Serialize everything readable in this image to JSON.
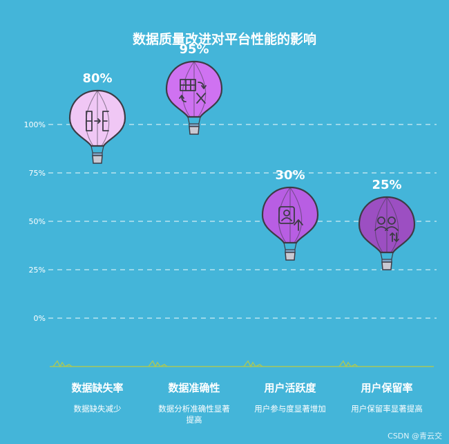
{
  "credit": "CSDN @青云交",
  "chart_data": {
    "type": "bar",
    "title": "数据质量改进对平台性能的影响",
    "categories": [
      "数据缺失率",
      "数据准确性",
      "用户活跃度",
      "用户保留率"
    ],
    "descriptions": [
      "数据缺失减少",
      "数据分析准确性显著提高",
      "用户参与度显著增加",
      "用户保留率显著提高"
    ],
    "values": [
      80,
      95,
      30,
      25
    ],
    "value_labels": [
      "80%",
      "95%",
      "30%",
      "25%"
    ],
    "yticks": [
      {
        "value": 0,
        "label": "0%"
      },
      {
        "value": 25,
        "label": "25%"
      },
      {
        "value": 50,
        "label": "50%"
      },
      {
        "value": 75,
        "label": "75%"
      },
      {
        "value": 100,
        "label": "100%"
      }
    ],
    "ylim": [
      0,
      100
    ],
    "grid": true,
    "colors": [
      "#f0c7f5",
      "#cf72f1",
      "#b85ee3",
      "#9c4fc2"
    ],
    "icons": [
      "data-gap-icon",
      "table-transform-icon",
      "user-activity-icon",
      "user-retention-icon"
    ]
  }
}
